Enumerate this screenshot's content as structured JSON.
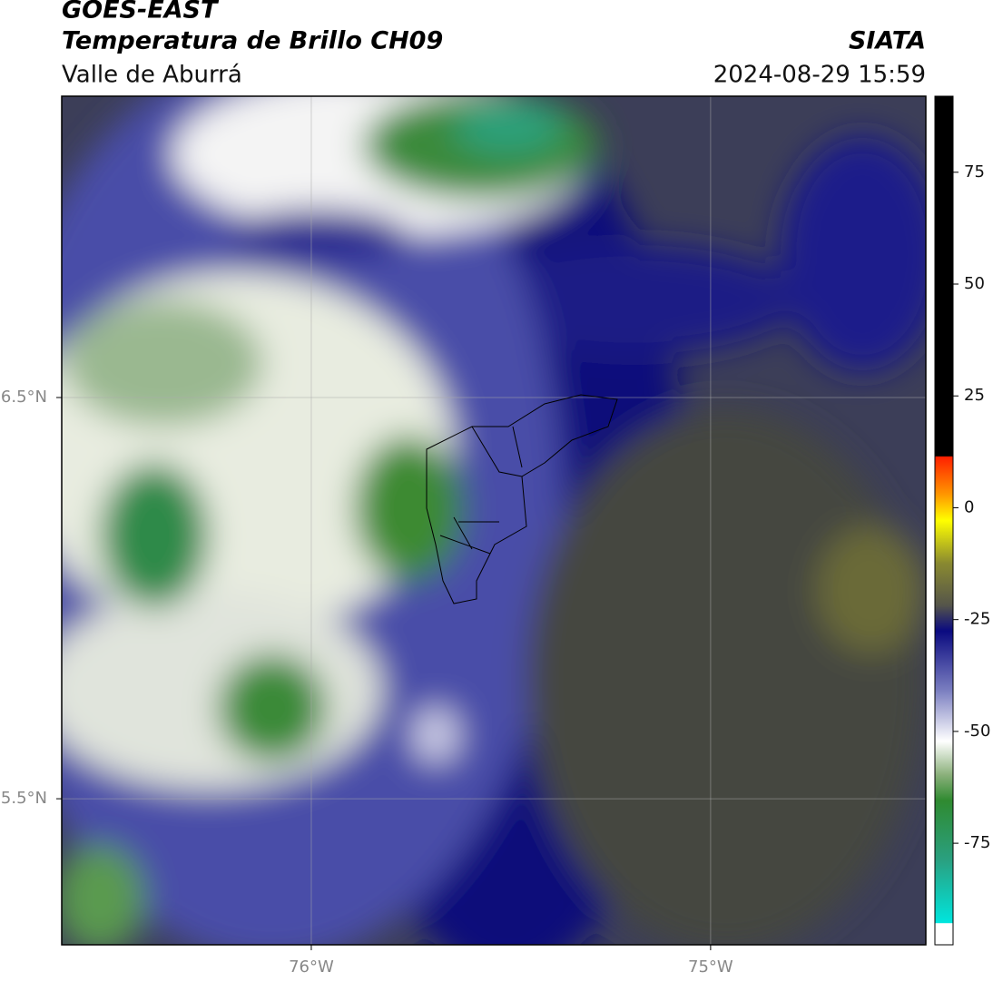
{
  "header": {
    "title": "GOES-EAST",
    "subtitle": "Temperatura de Brillo CH09",
    "region": "Valle de Aburrá",
    "source": "SIATA",
    "datetime": "2024-08-29 15:59"
  },
  "map": {
    "lonlim": [
      -76.625,
      -74.461
    ],
    "latlim": [
      5.136,
      7.251
    ],
    "lonticks": [
      {
        "value": -76,
        "label": "76°W"
      },
      {
        "value": -75,
        "label": "75°W"
      }
    ],
    "latticks": [
      {
        "value": 6.5,
        "label": "6.5°N"
      },
      {
        "value": 5.5,
        "label": "5.5°N"
      }
    ]
  },
  "colorbar": {
    "lim": [
      -97.7,
      92
    ],
    "ticks": [
      75,
      50,
      25,
      0,
      -25,
      -50,
      -75
    ]
  }
}
